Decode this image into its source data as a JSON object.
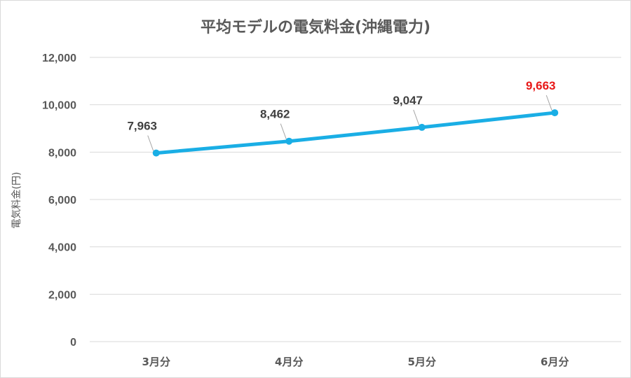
{
  "chart_data": {
    "type": "line",
    "title": "平均モデルの電気料金(沖縄電力)",
    "ylabel": "電気料金(円)",
    "xlabel": "",
    "categories": [
      "3月分",
      "4月分",
      "5月分",
      "6月分"
    ],
    "values": [
      7963,
      8462,
      9047,
      9663
    ],
    "data_labels": [
      "7,963",
      "8,462",
      "9,047",
      "9,663"
    ],
    "highlight_index": 3,
    "ylim": [
      0,
      12000
    ],
    "yticks": [
      "0",
      "2,000",
      "4,000",
      "6,000",
      "8,000",
      "10,000",
      "12,000"
    ],
    "grid": true,
    "legend": "none",
    "colors": {
      "line": "#1aaee5",
      "highlight_label": "#e81818",
      "label": "#404040",
      "axis_text": "#595959",
      "grid": "#d9d9d9",
      "leader": "#a6a6a6"
    }
  }
}
